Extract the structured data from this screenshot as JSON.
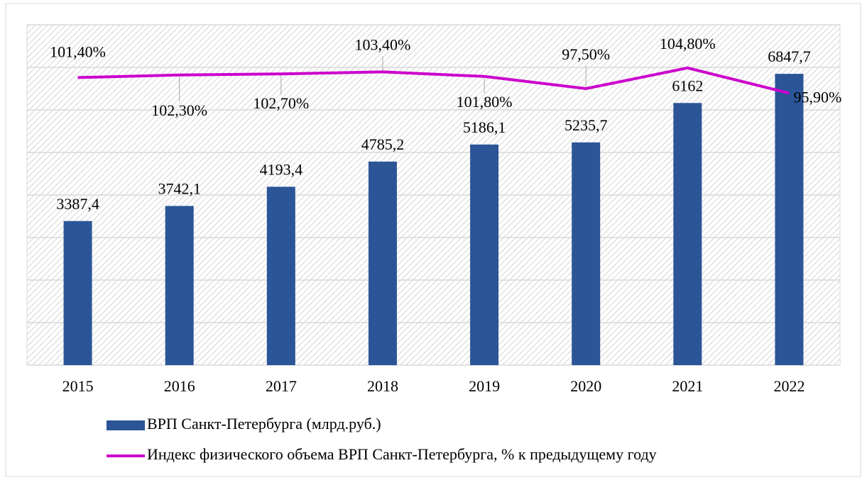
{
  "chart_data": {
    "type": "bar",
    "categories": [
      "2015",
      "2016",
      "2017",
      "2018",
      "2019",
      "2020",
      "2021",
      "2022"
    ],
    "series": [
      {
        "name": "ВРП Санкт-Петербурга (млрд.руб.)",
        "type": "bar",
        "color": "#2b5597",
        "values": [
          3387.4,
          3742.1,
          4193.4,
          4785.2,
          5186.1,
          5235.7,
          6162,
          6847.7
        ],
        "value_labels": [
          "3387,4",
          "3742,1",
          "4193,4",
          "4785,2",
          "5186,1",
          "5235,7",
          "6162",
          "6847,7"
        ]
      },
      {
        "name": "Индекс физического объема ВРП Санкт-Петербурга, % к предыдущему году",
        "type": "line",
        "axis": "y2",
        "color": "#cc00cc",
        "values": [
          101.4,
          102.3,
          102.7,
          103.4,
          101.8,
          97.5,
          104.8,
          95.9
        ],
        "value_labels": [
          "101,40%",
          "102,30%",
          "102,70%",
          "103,40%",
          "101,80%",
          "97,50%",
          "104,80%",
          "95,90%"
        ]
      }
    ],
    "ylim": [
      0,
      8000
    ],
    "yticks": [
      0,
      1000,
      2000,
      3000,
      4000,
      5000,
      6000,
      7000,
      8000
    ],
    "y2lim": [
      0,
      120
    ],
    "grid": true
  }
}
